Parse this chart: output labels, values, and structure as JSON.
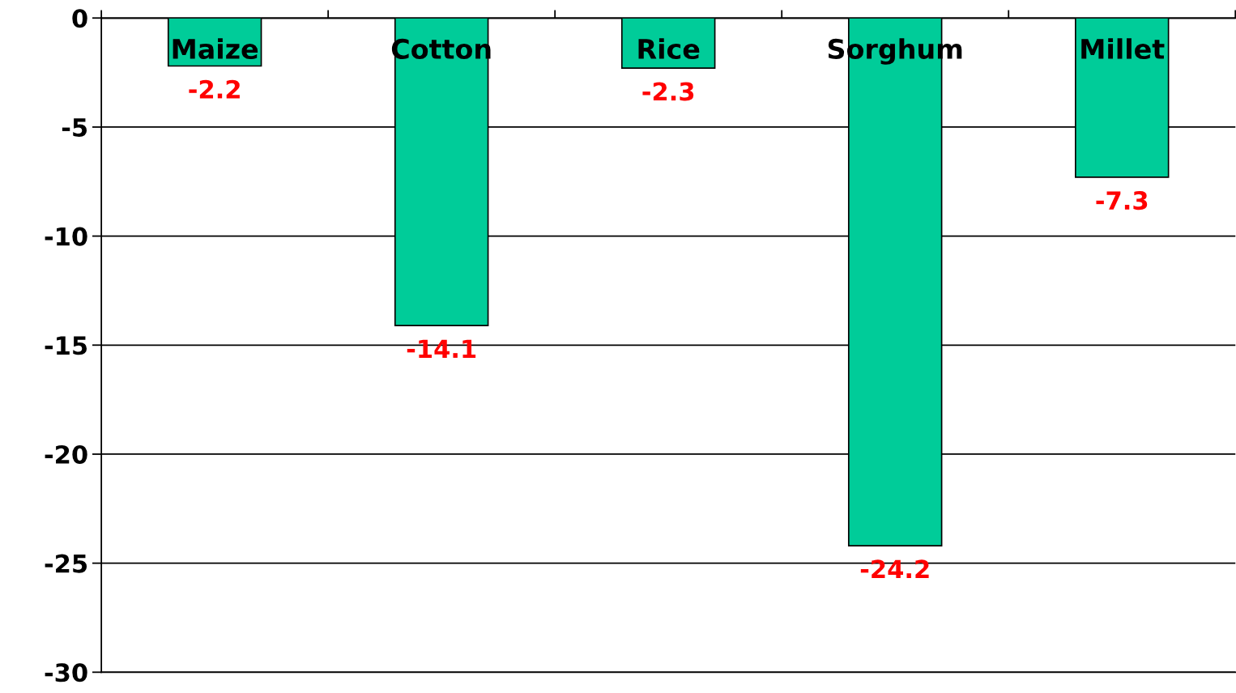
{
  "chart_data": {
    "type": "bar",
    "categories": [
      "Maize",
      "Cotton",
      "Rice",
      "Sorghum",
      "Millet"
    ],
    "values": [
      -2.2,
      -14.1,
      -2.3,
      -24.2,
      -7.3
    ],
    "color": "#00cc99",
    "ylim": [
      -30,
      0
    ],
    "yticks": [
      0,
      -5,
      -10,
      -15,
      -20,
      -25,
      -30
    ],
    "grid": "y",
    "data_labels": true,
    "legend": false
  }
}
